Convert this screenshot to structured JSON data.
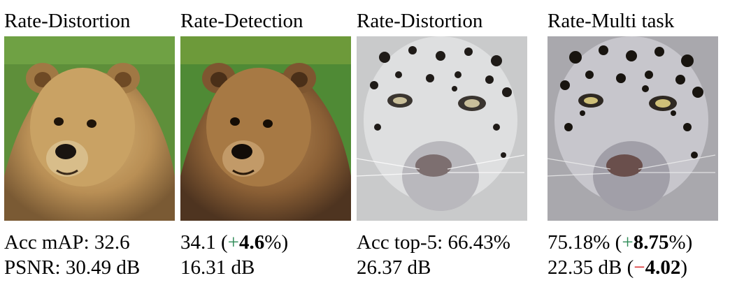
{
  "panels": [
    {
      "title": "Rate-Distortion",
      "image": "bear-original-reconstruction",
      "line1": "Acc mAP: 32.6",
      "line2": "PSNR: 30.49 dB"
    },
    {
      "title": "Rate-Detection",
      "image": "bear-detection-reconstruction",
      "line1_value": "34.1 (",
      "line1_sign": "+",
      "line1_delta": "4.6",
      "line1_tail": "%)",
      "line2": "16.31 dB"
    },
    {
      "title": "Rate-Distortion",
      "image": "snow-leopard-distortion-reconstruction",
      "line1": "Acc top-5: 66.43%",
      "line2": "26.37 dB"
    },
    {
      "title": "Rate-Multi task",
      "image": "snow-leopard-multitask-reconstruction",
      "line1_value": "75.18% (",
      "line1_sign": "+",
      "line1_delta": "8.75",
      "line1_tail": "%)",
      "line2_value": "22.35 dB (",
      "line2_sign": "−",
      "line2_delta": "4.02",
      "line2_tail": ")"
    }
  ],
  "colors": {
    "positive": "#2e8b57",
    "negative": "#d62728"
  }
}
